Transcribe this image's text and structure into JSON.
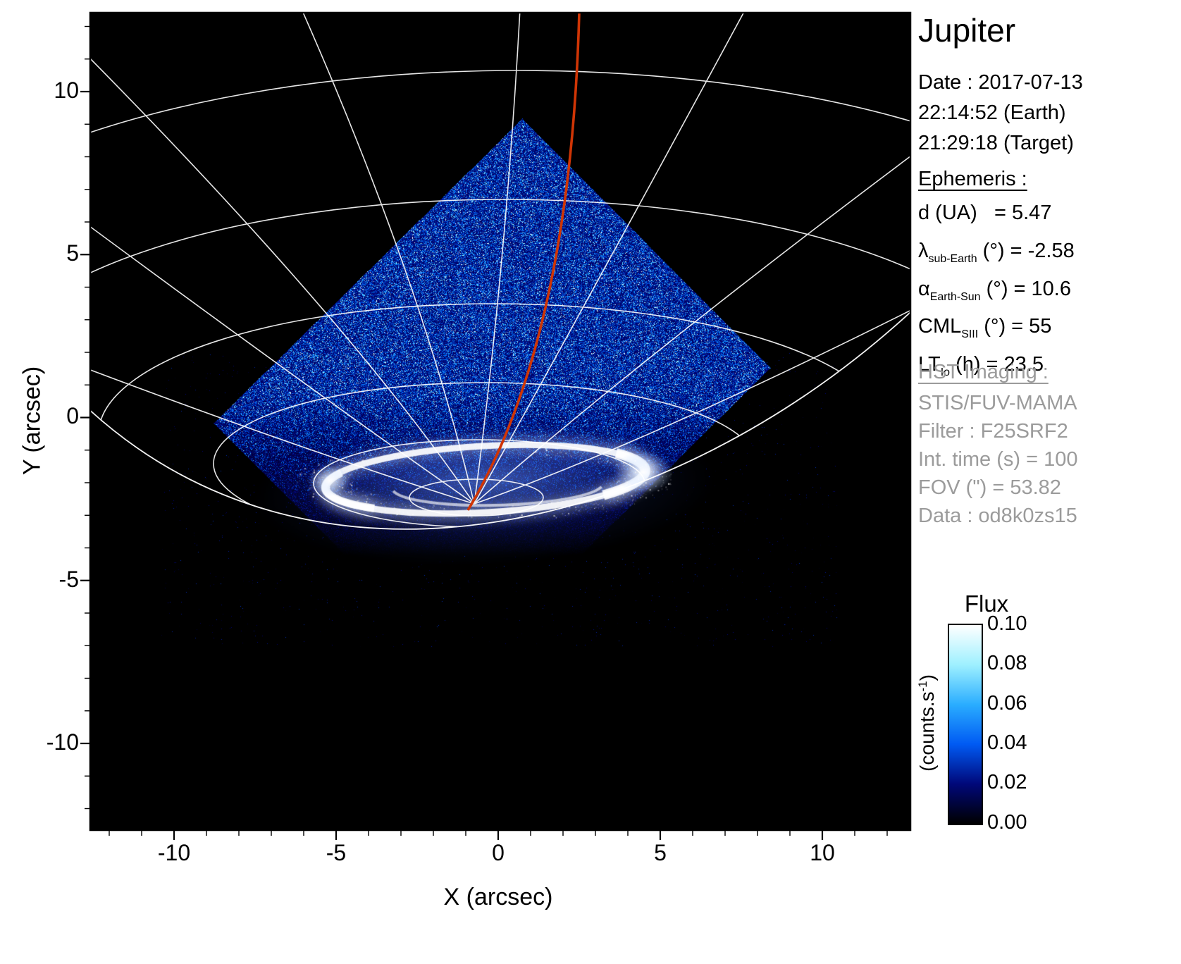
{
  "title": "Jupiter",
  "observation": {
    "date": "Date : 2017-07-13",
    "time_earth": "22:14:52 (Earth)",
    "time_target": "21:29:18 (Target)"
  },
  "ephemeris": {
    "header": "Ephemeris :",
    "rows": [
      {
        "pre": "d (UA)",
        "sub": "",
        "post": "   = 5.47"
      },
      {
        "pre": "λ",
        "sub": "sub-Earth",
        "post": " (°) = -2.58"
      },
      {
        "pre": "α",
        "sub": "Earth-Sun",
        "post": " (°) = 10.6"
      },
      {
        "pre": "CML",
        "sub": "SIII",
        "post": " (°) = 55"
      },
      {
        "pre": "LT",
        "sub": "Io",
        "post": " (h) = 23.5"
      }
    ]
  },
  "hst": {
    "header": "HST Imaging :",
    "lines": [
      "STIS/FUV-MAMA",
      "Filter : F25SRF2",
      "Int. time (s) = 100",
      "FOV (\") = 53.82",
      "Data : od8k0zs15"
    ]
  },
  "axes": {
    "xlabel": "X (arcsec)",
    "ylabel": "Y (arcsec)",
    "x_tick_labels": [
      "-10",
      "-5",
      "0",
      "5",
      "10"
    ],
    "y_tick_labels": [
      "10",
      "5",
      "0",
      "-5",
      "-10"
    ]
  },
  "colorbar": {
    "title": "Flux",
    "unit_pre": "(counts.s",
    "unit_sup": "-1",
    "unit_post": ")",
    "tick_labels": [
      "0.10",
      "0.08",
      "0.06",
      "0.04",
      "0.02",
      "0.00"
    ]
  },
  "colors": {
    "plot_background": "#000000",
    "graticule": "#ffffff",
    "io_track": "#d03505",
    "noise_blue": "#0032b4",
    "gray_text": "#9b9b9b"
  },
  "chart_data": {
    "type": "heatmap",
    "title": "Jupiter",
    "xlabel": "X (arcsec)",
    "ylabel": "Y (arcsec)",
    "xlim": [
      -12.6,
      12.7
    ],
    "ylim": [
      -12.7,
      12.4
    ],
    "x_ticks": [
      -10,
      -5,
      0,
      5,
      10
    ],
    "y_ticks": [
      10,
      5,
      0,
      -5,
      -10
    ],
    "grid": "planetocentric latitude/longitude graticule in white, clipped at the planetary limb",
    "colorbar": {
      "label": "Flux",
      "unit": "counts/s",
      "min": 0.0,
      "max": 0.1,
      "tick_step": 0.02,
      "colormap": "black-blue-white"
    },
    "content": {
      "detector_fov": "rotated-square STIS detector footprint filled with blue photon noise; apex near (0.8, 9.2) arcsec, left corner near (-8.8, -0.2), right corner near (8.4, 1.5)",
      "aurora": "bright white northern auroral oval ring centered near (-0.6, -1.7) arcsec, semi-axes approx 4.9 x 1.0 arcsec, brightest on its right (dusk) ansa",
      "io_track": "red field-line track entering top of frame near x = 2.5 arcsec and curving down to the oval near (-1.0, -2.3) arcsec",
      "limb": "planetary limb arc crossing from (-12.6, 0.7) through (-0.5, -2.8) to (12.7, 3.6) arcsec"
    }
  }
}
